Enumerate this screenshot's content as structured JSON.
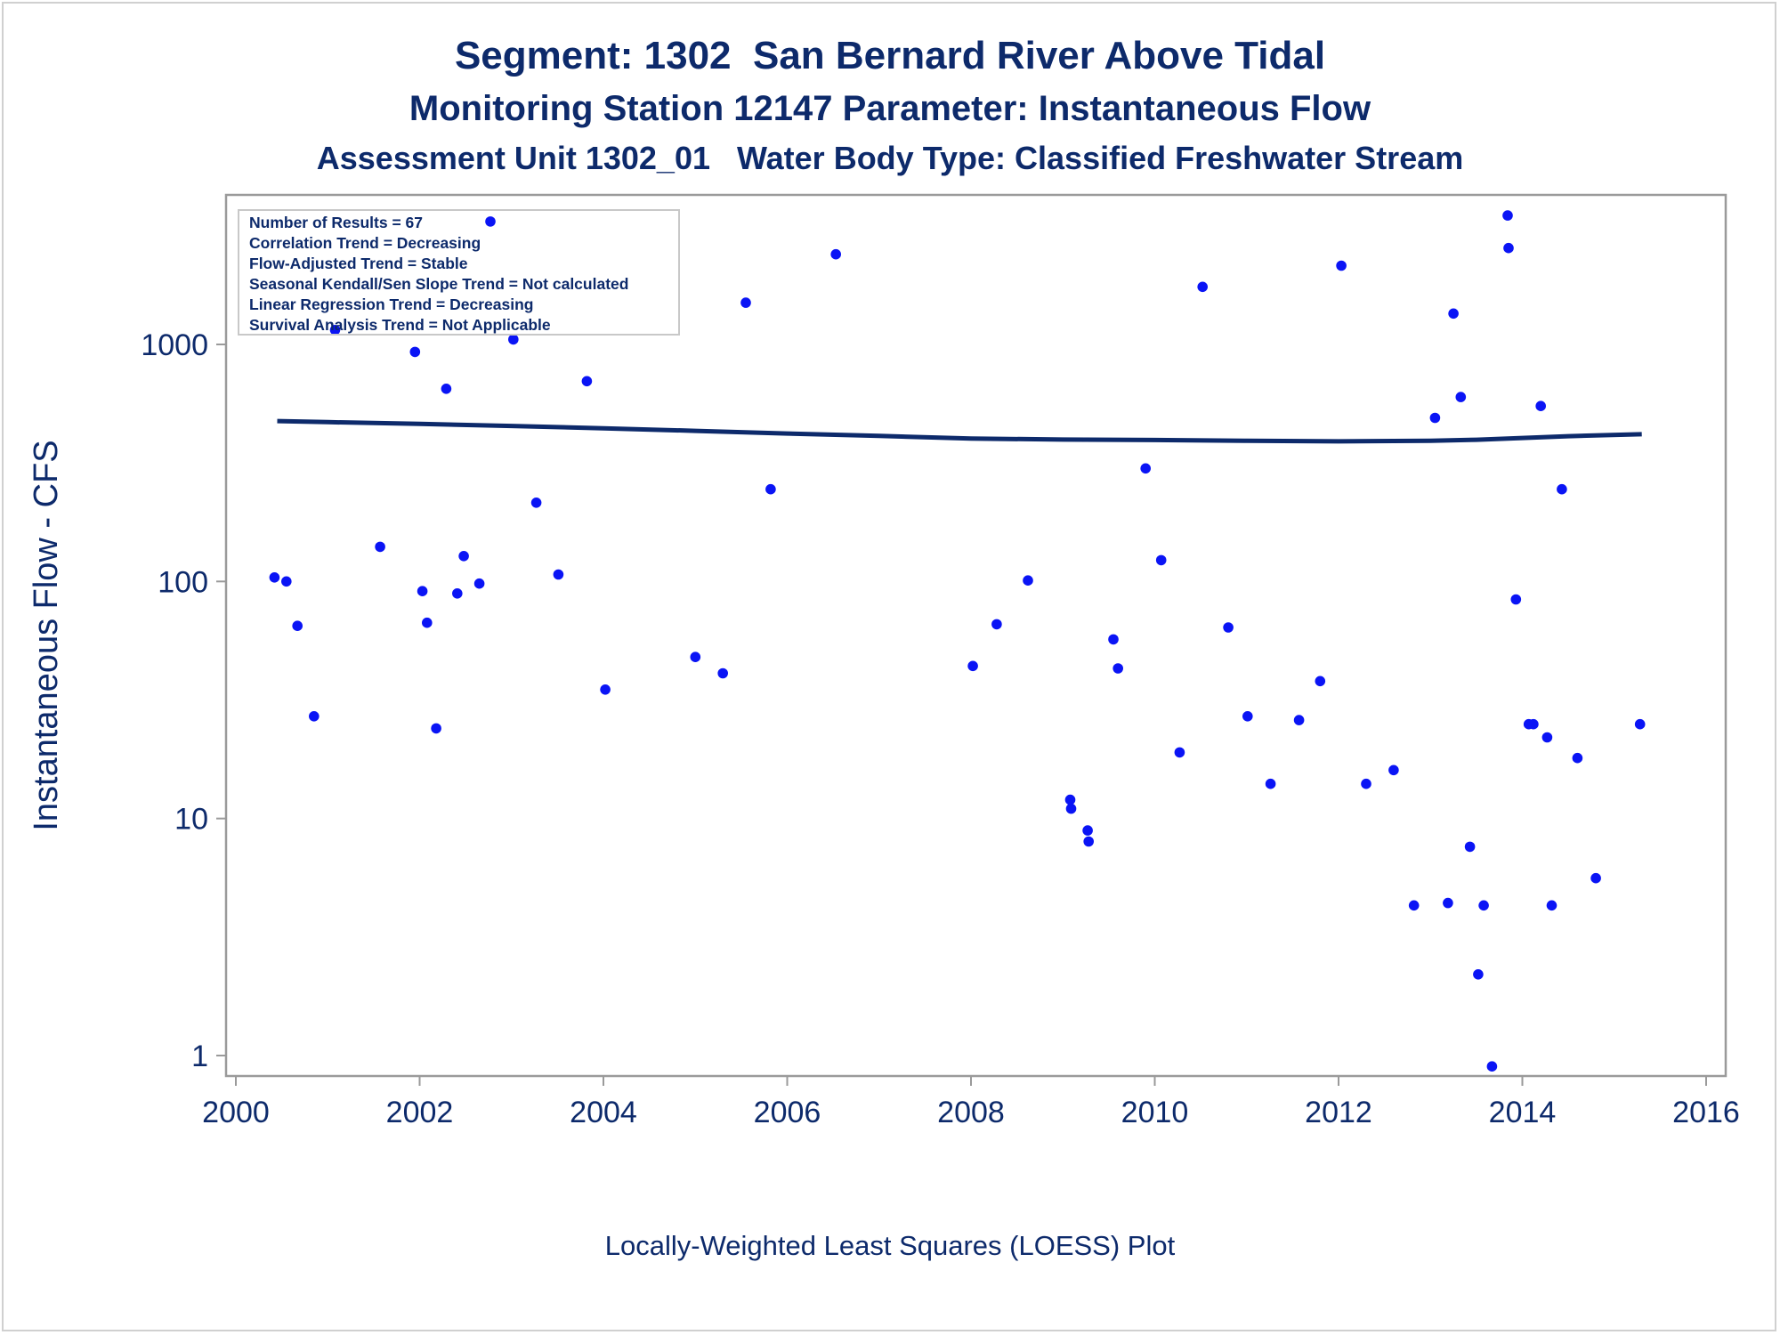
{
  "titles": {
    "line1": "Segment: 1302  San Bernard River Above Tidal",
    "line2": "Monitoring Station 12147 Parameter: Instantaneous Flow",
    "line3": "Assessment Unit 1302_01   Water Body Type: Classified Freshwater Stream"
  },
  "footnote": "Locally-Weighted Least Squares (LOESS) Plot",
  "colors": {
    "text": "#0d2a6b",
    "points": "#0a14f5",
    "loess_line": "#0d2a6b",
    "frame": "#9a9a9a",
    "inset_border": "#c8c8c8"
  },
  "stats_box": {
    "lines": [
      "Number of Results = 67",
      "Correlation Trend = Decreasing",
      "Flow-Adjusted Trend = Stable",
      "Seasonal Kendall/Sen Slope Trend = Not calculated",
      "Linear Regression Trend = Decreasing",
      "Survival Analysis Trend = Not Applicable"
    ]
  },
  "chart_data": {
    "type": "scatter",
    "xlabel": "",
    "ylabel": "Instantaneous Flow - CFS",
    "y_scale": "log",
    "xlim": [
      2000,
      2016
    ],
    "ylim": [
      0.85,
      4500
    ],
    "x_ticks": [
      2000,
      2002,
      2004,
      2006,
      2008,
      2010,
      2012,
      2014,
      2016
    ],
    "x_tick_labels": [
      "2000",
      "2002",
      "2004",
      "2006",
      "2008",
      "2010",
      "2012",
      "2014",
      "2016"
    ],
    "y_ticks": [
      1,
      10,
      100,
      1000
    ],
    "y_tick_labels": [
      "1",
      "10",
      "100",
      "1000"
    ],
    "grid": false,
    "legend": "none",
    "series": [
      {
        "values": [
          [
            2000.42,
            104
          ],
          [
            2000.55,
            100
          ],
          [
            2000.67,
            65
          ],
          [
            2000.85,
            27
          ],
          [
            2001.08,
            1150
          ],
          [
            2001.57,
            140
          ],
          [
            2001.95,
            930
          ],
          [
            2002.03,
            91
          ],
          [
            2002.08,
            67
          ],
          [
            2002.18,
            24
          ],
          [
            2002.29,
            650
          ],
          [
            2002.41,
            89
          ],
          [
            2002.48,
            128
          ],
          [
            2002.65,
            98
          ],
          [
            2002.77,
            3300
          ],
          [
            2003.02,
            1050
          ],
          [
            2003.27,
            215
          ],
          [
            2003.51,
            107
          ],
          [
            2003.82,
            700
          ],
          [
            2004.02,
            35
          ],
          [
            2005.0,
            48
          ],
          [
            2005.3,
            41
          ],
          [
            2005.55,
            1500
          ],
          [
            2005.82,
            245
          ],
          [
            2006.53,
            2400
          ],
          [
            2008.02,
            44
          ],
          [
            2008.28,
            66
          ],
          [
            2008.62,
            101
          ],
          [
            2009.08,
            12
          ],
          [
            2009.09,
            11
          ],
          [
            2009.27,
            8.9
          ],
          [
            2009.28,
            8.0
          ],
          [
            2009.55,
            57
          ],
          [
            2009.6,
            43
          ],
          [
            2009.9,
            300
          ],
          [
            2010.07,
            123
          ],
          [
            2010.27,
            19
          ],
          [
            2010.52,
            1750
          ],
          [
            2010.8,
            64
          ],
          [
            2011.01,
            27
          ],
          [
            2011.26,
            14
          ],
          [
            2011.57,
            26
          ],
          [
            2011.8,
            38
          ],
          [
            2012.03,
            2150
          ],
          [
            2012.3,
            14
          ],
          [
            2012.6,
            16
          ],
          [
            2012.82,
            4.3
          ],
          [
            2013.05,
            490
          ],
          [
            2013.19,
            4.4
          ],
          [
            2013.25,
            1350
          ],
          [
            2013.33,
            600
          ],
          [
            2013.43,
            7.6
          ],
          [
            2013.52,
            2.2
          ],
          [
            2013.58,
            4.3
          ],
          [
            2013.67,
            0.9
          ],
          [
            2013.84,
            3500
          ],
          [
            2013.85,
            2550
          ],
          [
            2013.93,
            84
          ],
          [
            2014.07,
            25
          ],
          [
            2014.12,
            25
          ],
          [
            2014.2,
            550
          ],
          [
            2014.27,
            22
          ],
          [
            2014.32,
            4.3
          ],
          [
            2014.43,
            245
          ],
          [
            2014.6,
            18
          ],
          [
            2014.8,
            5.6
          ],
          [
            2015.28,
            25
          ]
        ]
      }
    ],
    "loess_curve": [
      [
        2000.45,
        475
      ],
      [
        2001.0,
        470
      ],
      [
        2002.0,
        462
      ],
      [
        2003.0,
        453
      ],
      [
        2004.0,
        443
      ],
      [
        2005.0,
        432
      ],
      [
        2006.0,
        421
      ],
      [
        2007.0,
        411
      ],
      [
        2008.0,
        401
      ],
      [
        2009.0,
        397
      ],
      [
        2010.0,
        395
      ],
      [
        2011.0,
        392
      ],
      [
        2012.0,
        390
      ],
      [
        2013.0,
        392
      ],
      [
        2013.5,
        396
      ],
      [
        2014.0,
        403
      ],
      [
        2014.5,
        410
      ],
      [
        2015.3,
        418
      ]
    ]
  }
}
